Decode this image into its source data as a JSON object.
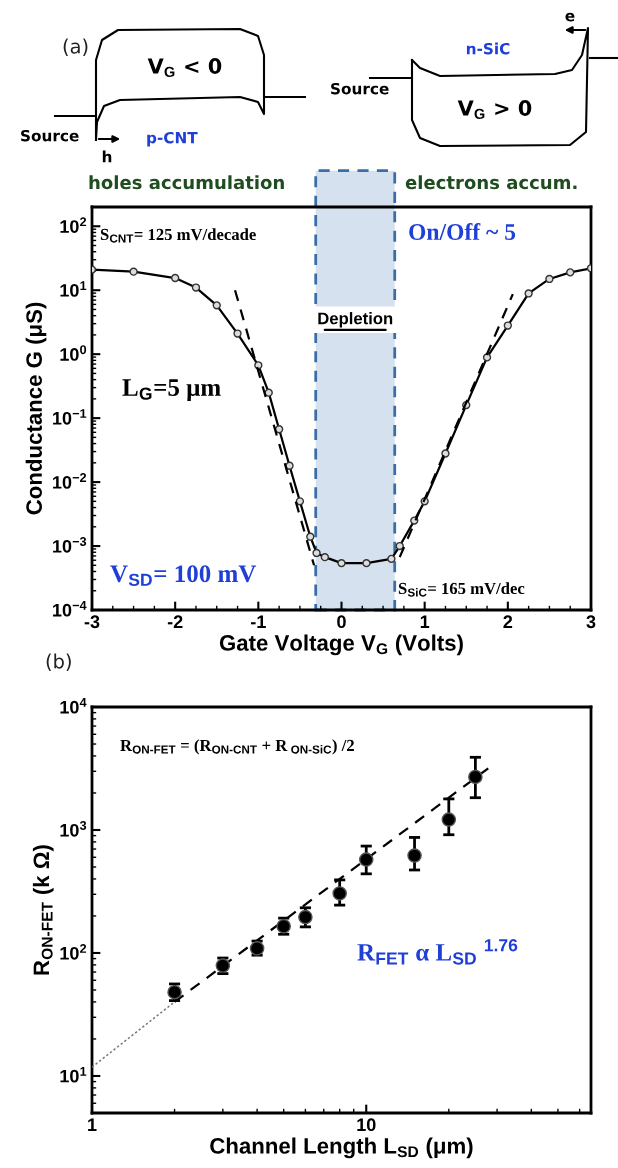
{
  "chart_data": [
    {
      "type": "line",
      "xlabel": "Gate Voltage V$_{G}$ (Volts)",
      "ylabel": "Conductance G (μS)",
      "log": "y",
      "xlim": [
        -3,
        3
      ],
      "xticks": [
        -3,
        -2,
        -1,
        0,
        1,
        2,
        3
      ],
      "ylim": [
        0.0001,
        200
      ],
      "yticks": [
        {
          "value": 0.0001,
          "label": "10$^{−4}$"
        },
        {
          "value": 0.001,
          "label": "10$^{−3}$"
        },
        {
          "value": 0.01,
          "label": "10$^{−2}$"
        },
        {
          "value": 0.1,
          "label": "10$^{−1}$"
        },
        {
          "value": 1,
          "label": "10$^{0}$"
        },
        {
          "value": 10,
          "label": "10$^{1}$"
        },
        {
          "value": 100,
          "label": "10$^{2}$"
        }
      ],
      "grid": false,
      "series": [
        {
          "color": "#000000",
          "marker": "circle",
          "line_style": "solid",
          "x": [
            -3,
            -2.5,
            -2,
            -1.75,
            -1.5,
            -1.25,
            -1,
            -0.875,
            -0.75,
            -0.625,
            -0.5,
            -0.375,
            -0.3,
            -0.2,
            0,
            0.3,
            0.6,
            0.7,
            0.875,
            1,
            1.25,
            1.5,
            1.75,
            2,
            2.25,
            2.5,
            2.75,
            3
          ],
          "values": [
            21,
            19.5,
            15.5,
            11,
            5.8,
            2.1,
            0.67,
            0.25,
            0.067,
            0.018,
            0.005,
            0.0014,
            0.00078,
            0.00067,
            0.00054,
            0.00054,
            0.00063,
            0.001,
            0.0025,
            0.005,
            0.028,
            0.16,
            0.89,
            2.8,
            8.9,
            15,
            19,
            22
          ]
        },
        {
          "color": "#000000",
          "marker": "none",
          "line_style": "dashed",
          "x": [
            -1.28,
            -0.33
          ],
          "values": [
            10,
            0.0005
          ]
        },
        {
          "color": "#000000",
          "marker": "none",
          "line_style": "dashed",
          "x": [
            0.7,
            2.06
          ],
          "values": [
            0.00067,
            8.7
          ]
        }
      ],
      "bands": [
        {
          "axis": "x",
          "from": -0.31,
          "to": 0.64,
          "label": "Depletion",
          "color": "#d6e1ef"
        }
      ],
      "annotations": [
        "(a)",
        "V$_{G}$ < 0",
        "Source",
        "p-CNT",
        "h",
        "n-SiC",
        "e",
        "Source",
        "V$_{G}$ > 0",
        "holes accumulation",
        "electrons accum.",
        "S$_{CNT}$= 125 mV/decade",
        "On/Off ~ 5",
        "L$_{G}$=5 μm",
        "V$_{SD}$= 100 mV",
        "S$_{SiC}$= 165 mV/dec"
      ]
    },
    {
      "type": "scatter",
      "xlabel": "Channel Length L$_{SD}$ (μm)",
      "ylabel": "R$_{ON-FET}$ (k Ω)",
      "log": "xy",
      "xlim": [
        1,
        66
      ],
      "xticks": [
        1,
        10
      ],
      "ylim": [
        5,
        10000
      ],
      "yticks": [
        {
          "value": 10,
          "label": "10$^{1}$"
        },
        {
          "value": 100,
          "label": "10$^{2}$"
        },
        {
          "value": 1000,
          "label": "10$^{3}$"
        },
        {
          "value": 10000,
          "label": "10$^{4}$"
        }
      ],
      "grid": false,
      "series": [
        {
          "color": "#000000",
          "marker": "circle",
          "x": [
            2,
            3,
            4,
            5,
            6,
            8,
            10,
            15,
            20,
            25
          ],
          "values": [
            48,
            79,
            109,
            165,
            196,
            305,
            575,
            620,
            1215,
            2700
          ],
          "errors": [
            [
              41,
              56
            ],
            [
              68,
              91
            ],
            [
              96,
              125
            ],
            [
              142,
              192
            ],
            [
              163,
              233
            ],
            [
              245,
              393
            ],
            [
              440,
              740
            ],
            [
              473,
              870
            ],
            [
              915,
              1790
            ],
            [
              1830,
              3900
            ]
          ]
        },
        {
          "type": "line",
          "color": "#777777",
          "marker": "none",
          "line_style": "dotted",
          "x": [
            1,
            2
          ],
          "values": [
            11.8,
            40
          ]
        },
        {
          "type": "line",
          "color": "#000000",
          "marker": "none",
          "line_style": "dashed",
          "x": [
            2,
            28
          ],
          "values": [
            40,
            3200
          ]
        }
      ],
      "annotations": [
        "(b)",
        "R$_{ON-FET}$ = (R$_{ON-CNT}$ + R$_{ ON-SiC}$) /2",
        "R$_{FET}$ α L$_{SD}$ $^{1.76}$"
      ]
    }
  ]
}
